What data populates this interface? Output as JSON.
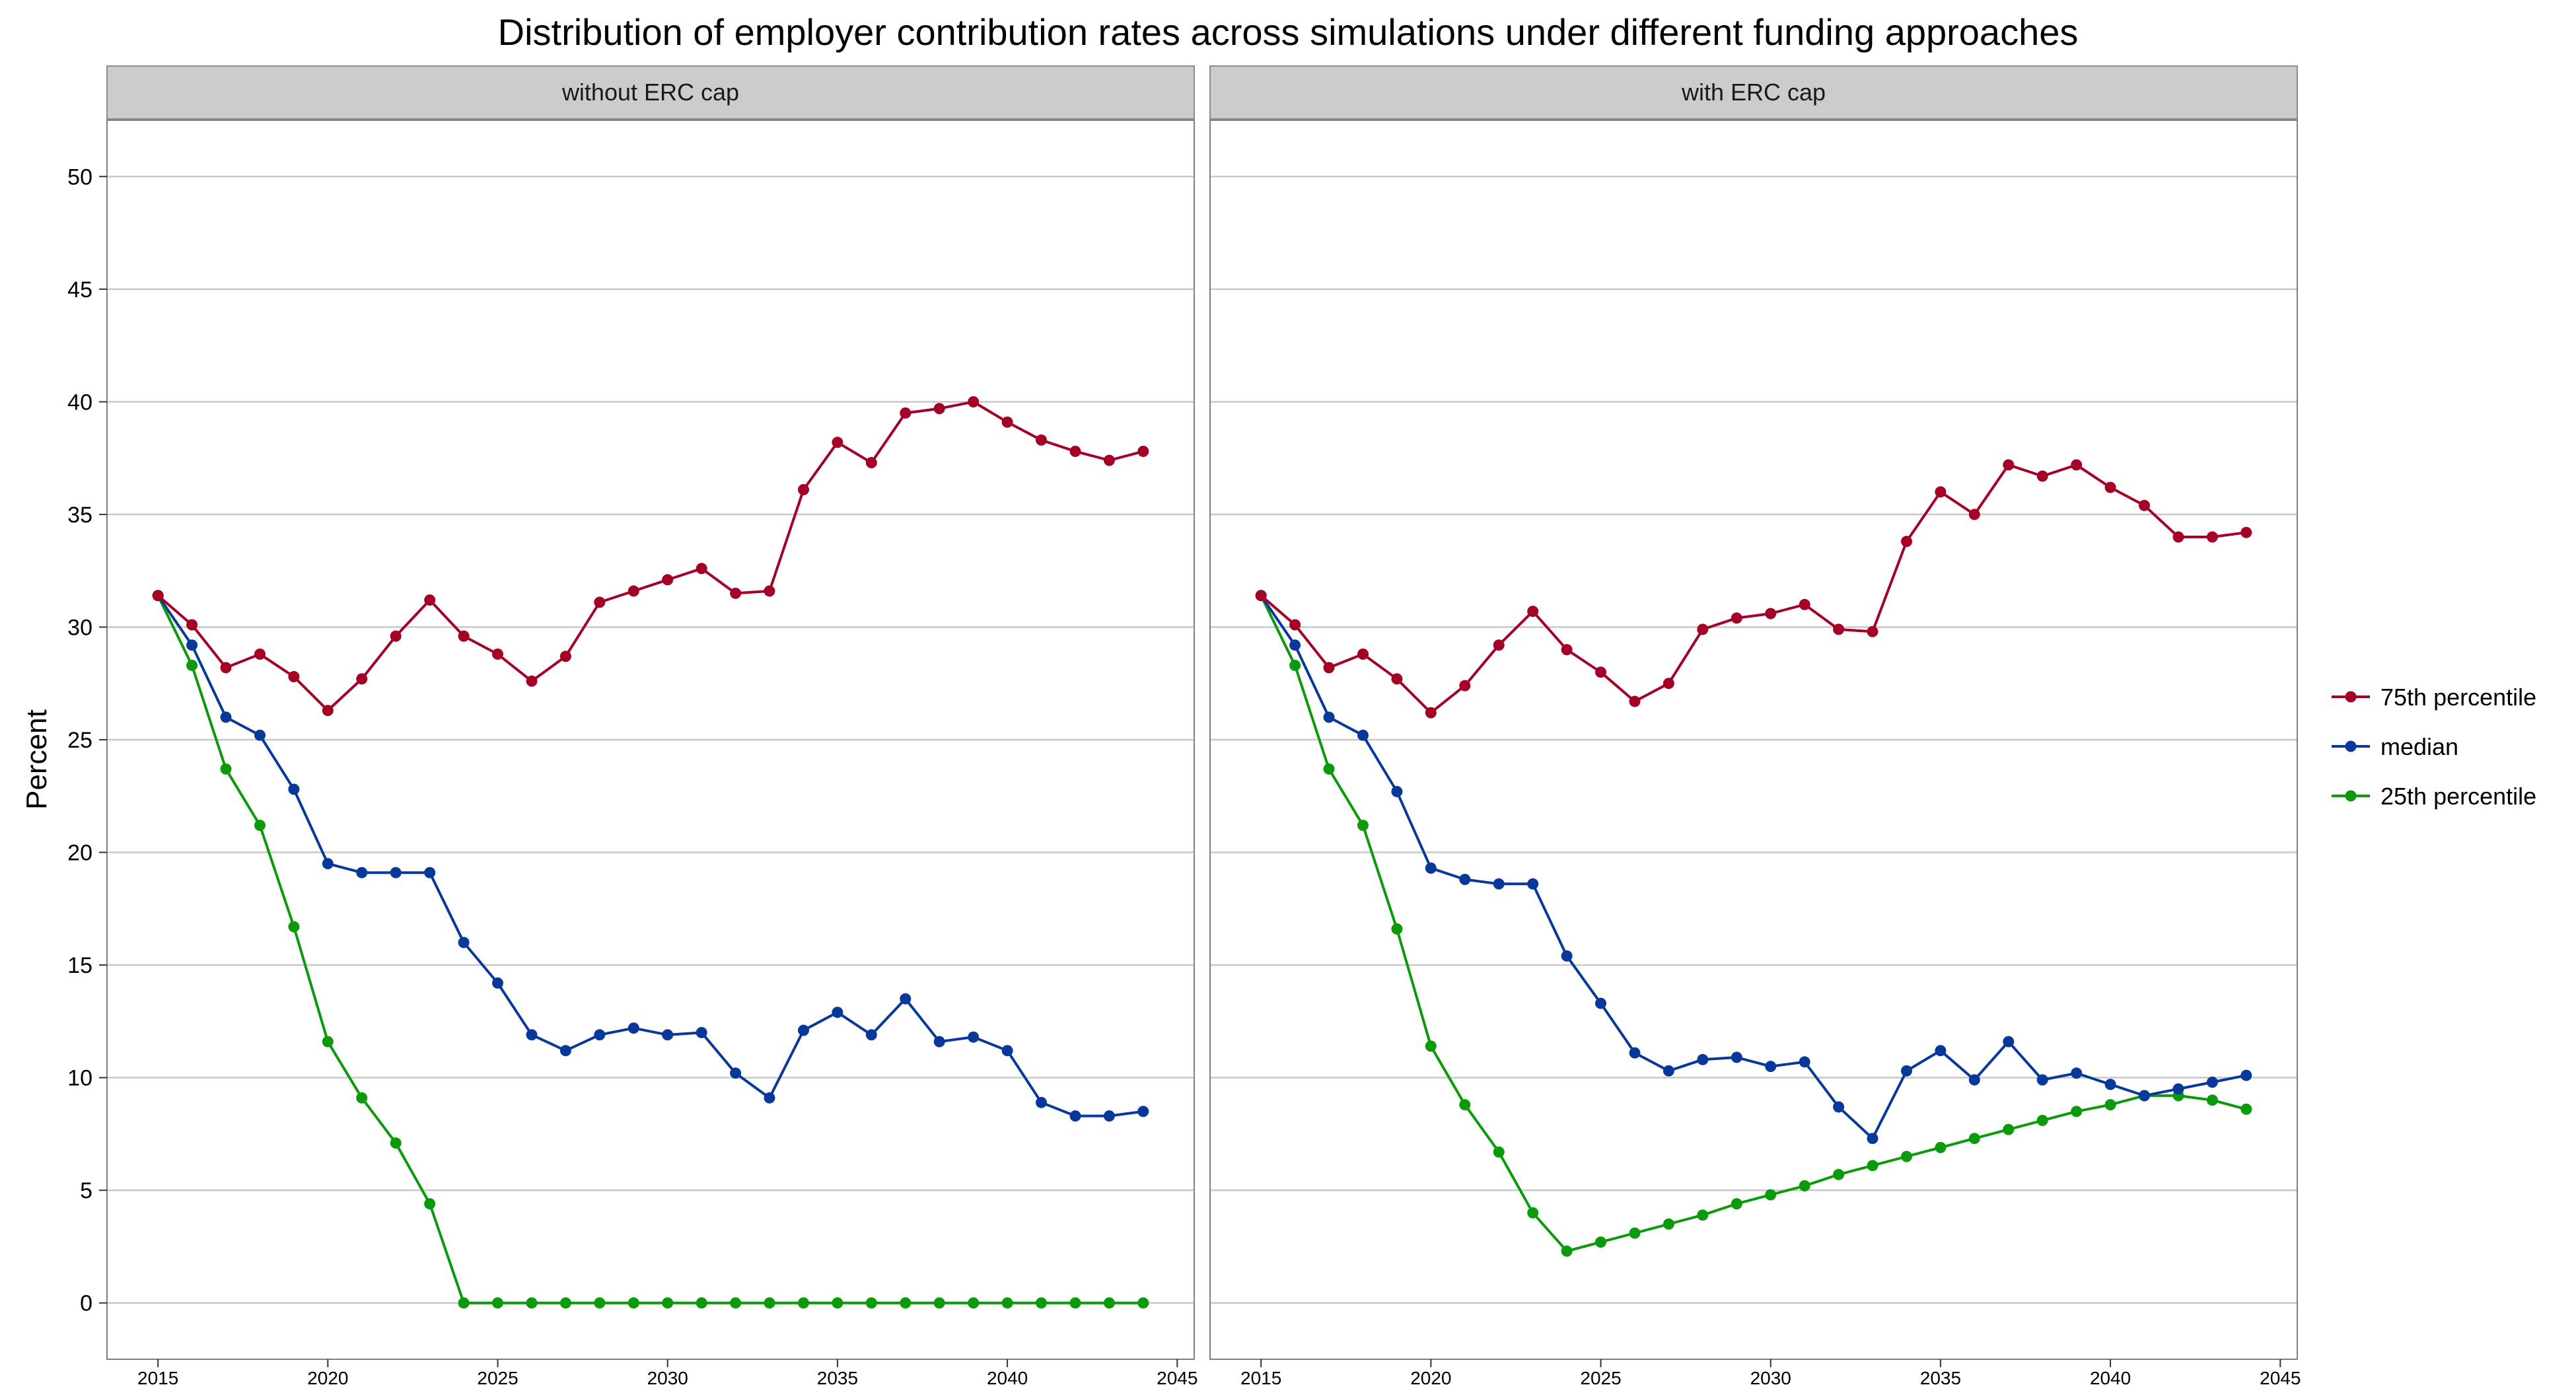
{
  "chart_data": {
    "type": "line",
    "title": "Distribution of employer contribution rates across simulations under different funding approaches",
    "ylabel": "Percent",
    "xlabel": "",
    "ylim": [
      -2.5,
      52.5
    ],
    "xlim": [
      2013.5,
      2045.5
    ],
    "yticks": [
      0,
      5,
      10,
      15,
      20,
      25,
      30,
      35,
      40,
      45,
      50
    ],
    "xticks": [
      2015,
      2020,
      2025,
      2030,
      2035,
      2040,
      2045
    ],
    "grid": true,
    "legend_position": "right",
    "x": [
      2015,
      2016,
      2017,
      2018,
      2019,
      2020,
      2021,
      2022,
      2023,
      2024,
      2025,
      2026,
      2027,
      2028,
      2029,
      2030,
      2031,
      2032,
      2033,
      2034,
      2035,
      2036,
      2037,
      2038,
      2039,
      2040,
      2041,
      2042,
      2043,
      2044
    ],
    "legend": [
      {
        "name": "75th percentile",
        "color": "#A50026"
      },
      {
        "name": "median",
        "color": "#08399A"
      },
      {
        "name": "25th percentile",
        "color": "#0A9A0A"
      }
    ],
    "panels": [
      {
        "label": "without ERC cap",
        "series": [
          {
            "name": "75th percentile",
            "color": "#A50026",
            "values": [
              31.4,
              30.1,
              28.2,
              28.8,
              27.8,
              26.3,
              27.7,
              29.6,
              31.2,
              29.6,
              28.8,
              27.6,
              28.7,
              31.1,
              31.6,
              32.1,
              32.6,
              31.5,
              31.6,
              36.1,
              38.2,
              37.3,
              39.5,
              39.7,
              40.0,
              39.1,
              38.3,
              37.8,
              37.4,
              37.8
            ]
          },
          {
            "name": "median",
            "color": "#08399A",
            "values": [
              31.4,
              29.2,
              26.0,
              25.2,
              22.8,
              19.5,
              19.1,
              19.1,
              19.1,
              16.0,
              14.2,
              11.9,
              11.2,
              11.9,
              12.2,
              11.9,
              12.0,
              10.2,
              9.1,
              12.1,
              12.9,
              11.9,
              13.5,
              11.6,
              11.8,
              11.2,
              8.9,
              8.3,
              8.3,
              8.5
            ]
          },
          {
            "name": "25th percentile",
            "color": "#0A9A0A",
            "values": [
              31.4,
              28.3,
              23.7,
              21.2,
              16.7,
              11.6,
              9.1,
              7.1,
              4.4,
              0,
              0,
              0,
              0,
              0,
              0,
              0,
              0,
              0,
              0,
              0,
              0,
              0,
              0,
              0,
              0,
              0,
              0,
              0,
              0,
              0
            ]
          }
        ]
      },
      {
        "label": "with ERC cap",
        "series": [
          {
            "name": "75th percentile",
            "color": "#A50026",
            "values": [
              31.4,
              30.1,
              28.2,
              28.8,
              27.7,
              26.2,
              27.4,
              29.2,
              30.7,
              29.0,
              28.0,
              26.7,
              27.5,
              29.9,
              30.4,
              30.6,
              31.0,
              29.9,
              29.8,
              33.8,
              36.0,
              35.0,
              37.2,
              36.7,
              37.2,
              36.2,
              35.4,
              34.0,
              34.0,
              34.2
            ]
          },
          {
            "name": "median",
            "color": "#08399A",
            "values": [
              31.4,
              29.2,
              26.0,
              25.2,
              22.7,
              19.3,
              18.8,
              18.6,
              18.6,
              15.4,
              13.3,
              11.1,
              10.3,
              10.8,
              10.9,
              10.5,
              10.7,
              8.7,
              7.3,
              10.3,
              11.2,
              9.9,
              11.6,
              9.9,
              10.2,
              9.7,
              9.2,
              9.5,
              9.8,
              10.1
            ]
          },
          {
            "name": "25th percentile",
            "color": "#0A9A0A",
            "values": [
              31.4,
              28.3,
              23.7,
              21.2,
              16.6,
              11.4,
              8.8,
              6.7,
              4.0,
              2.3,
              2.7,
              3.1,
              3.5,
              3.9,
              4.4,
              4.8,
              5.2,
              5.7,
              6.1,
              6.5,
              6.9,
              7.3,
              7.7,
              8.1,
              8.5,
              8.8,
              9.2,
              9.2,
              9.0,
              8.6
            ]
          }
        ]
      }
    ]
  }
}
